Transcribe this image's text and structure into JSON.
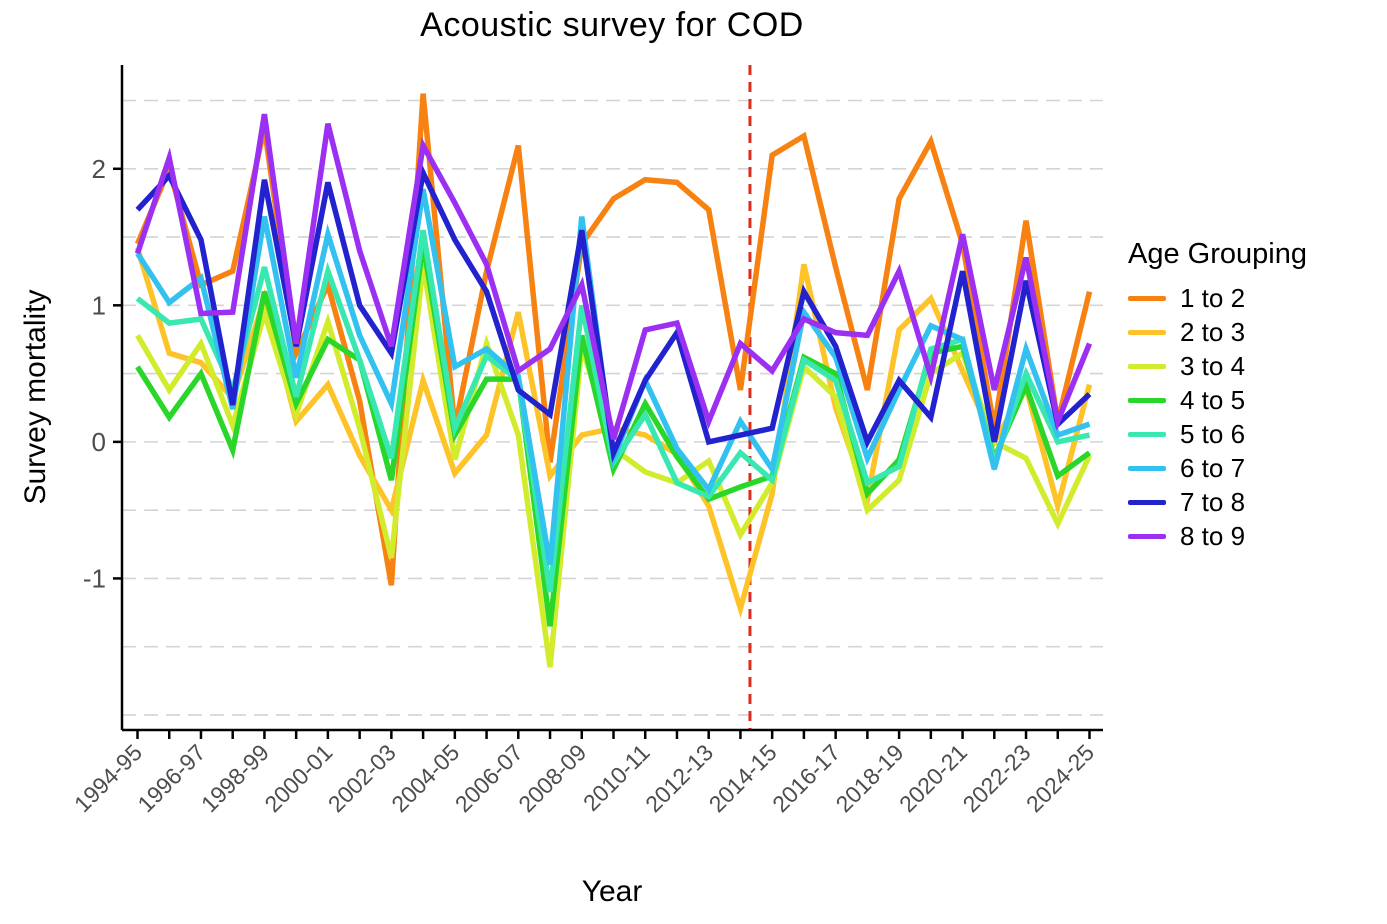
{
  "chart_data": {
    "type": "line",
    "title": "Acoustic survey for COD",
    "xlabel": "Year",
    "ylabel": "Survey mortality",
    "legend_title": "Age Grouping",
    "legend_position": "right",
    "grid": "dashed",
    "ylim": [
      -2.11,
      2.76
    ],
    "yticks": [
      2,
      1,
      0,
      -1
    ],
    "gridline_values": [
      2.5,
      2.0,
      1.5,
      1.0,
      0.5,
      0.0,
      -0.5,
      -1.0,
      -1.5,
      -2.0
    ],
    "x_label_every": 2,
    "x": [
      "1994-95",
      "1995-96",
      "1996-97",
      "1997-98",
      "1998-99",
      "1999-00",
      "2000-01",
      "2001-02",
      "2002-03",
      "2003-04",
      "2004-05",
      "2005-06",
      "2006-07",
      "2007-08",
      "2008-09",
      "2009-10",
      "2010-11",
      "2011-12",
      "2012-13",
      "2013-14",
      "2014-15",
      "2015-16",
      "2016-17",
      "2017-18",
      "2018-19",
      "2019-20",
      "2020-21",
      "2021-22",
      "2022-23",
      "2023-24",
      "2024-25"
    ],
    "vline": {
      "x_index": 19.3,
      "color": "#DC2B1F",
      "style": "dashed"
    },
    "series": [
      {
        "name": "1 to 2",
        "color": "#F78212",
        "values": [
          1.45,
          2.0,
          1.15,
          1.25,
          2.3,
          0.65,
          1.15,
          0.3,
          -1.05,
          2.55,
          0.1,
          1.25,
          2.17,
          -0.15,
          1.45,
          1.78,
          1.92,
          1.9,
          1.7,
          0.38,
          2.1,
          2.24,
          1.28,
          0.38,
          1.78,
          2.2,
          1.45,
          0.1,
          1.62,
          0.15,
          1.1
        ]
      },
      {
        "name": "2 to 3",
        "color": "#FDC328",
        "values": [
          1.42,
          0.65,
          0.58,
          0.32,
          1.05,
          0.15,
          0.42,
          -0.1,
          -0.5,
          0.45,
          -0.23,
          0.05,
          0.95,
          -0.25,
          0.05,
          0.1,
          0.05,
          -0.09,
          -0.47,
          -1.22,
          -0.38,
          1.3,
          0.25,
          -0.42,
          0.82,
          1.05,
          0.52,
          0.0,
          0.4,
          -0.47,
          0.42
        ]
      },
      {
        "name": "3 to 4",
        "color": "#D2EC2D",
        "values": [
          0.78,
          0.38,
          0.72,
          0.12,
          0.94,
          0.2,
          0.88,
          0.1,
          -0.85,
          1.3,
          -0.13,
          0.72,
          0.05,
          -1.65,
          0.7,
          -0.05,
          -0.22,
          -0.3,
          -0.14,
          -0.68,
          -0.3,
          0.55,
          0.33,
          -0.5,
          -0.28,
          0.5,
          0.65,
          0.0,
          -0.12,
          -0.6,
          -0.1
        ]
      },
      {
        "name": "4 to 5",
        "color": "#2BD62B",
        "values": [
          0.55,
          0.18,
          0.5,
          -0.06,
          1.1,
          0.28,
          0.75,
          0.6,
          -0.28,
          1.45,
          0.05,
          0.46,
          0.46,
          -1.35,
          0.78,
          -0.2,
          0.28,
          -0.11,
          -0.42,
          -0.33,
          -0.25,
          0.62,
          0.5,
          -0.38,
          -0.13,
          0.65,
          0.7,
          -0.12,
          0.41,
          -0.25,
          -0.08
        ]
      },
      {
        "name": "5 to 6",
        "color": "#38E8B0",
        "values": [
          1.05,
          0.87,
          0.9,
          0.38,
          1.28,
          0.33,
          1.25,
          0.6,
          -0.12,
          1.55,
          0.1,
          0.63,
          0.45,
          -1.1,
          1.0,
          -0.15,
          0.2,
          -0.3,
          -0.4,
          -0.08,
          -0.28,
          0.6,
          0.45,
          -0.3,
          -0.18,
          0.68,
          0.75,
          -0.15,
          0.5,
          0.0,
          0.05
        ]
      },
      {
        "name": "6 to 7",
        "color": "#33C1F0",
        "values": [
          1.38,
          1.02,
          1.2,
          0.24,
          1.65,
          0.47,
          1.52,
          0.78,
          0.28,
          1.85,
          0.55,
          0.68,
          0.48,
          -0.9,
          1.65,
          -0.12,
          0.45,
          -0.05,
          -0.35,
          0.15,
          -0.2,
          0.95,
          0.62,
          -0.12,
          0.38,
          0.85,
          0.75,
          -0.2,
          0.68,
          0.05,
          0.13
        ]
      },
      {
        "name": "7 to 8",
        "color": "#2222CE",
        "values": [
          1.7,
          1.95,
          1.48,
          0.27,
          1.92,
          0.7,
          1.9,
          1.0,
          0.65,
          1.97,
          1.48,
          1.1,
          0.38,
          0.2,
          1.55,
          -0.08,
          0.45,
          0.8,
          0.0,
          0.05,
          0.1,
          1.1,
          0.7,
          0.0,
          0.45,
          0.18,
          1.25,
          0.0,
          1.18,
          0.13,
          0.35
        ]
      },
      {
        "name": "8 to 9",
        "color": "#9B30F2",
        "values": [
          1.38,
          2.08,
          0.94,
          0.95,
          2.4,
          0.72,
          2.33,
          1.4,
          0.7,
          2.17,
          1.75,
          1.3,
          0.52,
          0.68,
          1.15,
          0.02,
          0.82,
          0.87,
          0.15,
          0.72,
          0.52,
          0.9,
          0.8,
          0.78,
          1.25,
          0.48,
          1.52,
          0.38,
          1.35,
          0.15,
          0.72
        ]
      }
    ]
  },
  "styles": {
    "tick_label_color": "#4D4D4D",
    "grid_color": "#D4D4D4",
    "axis_color": "#000000"
  }
}
